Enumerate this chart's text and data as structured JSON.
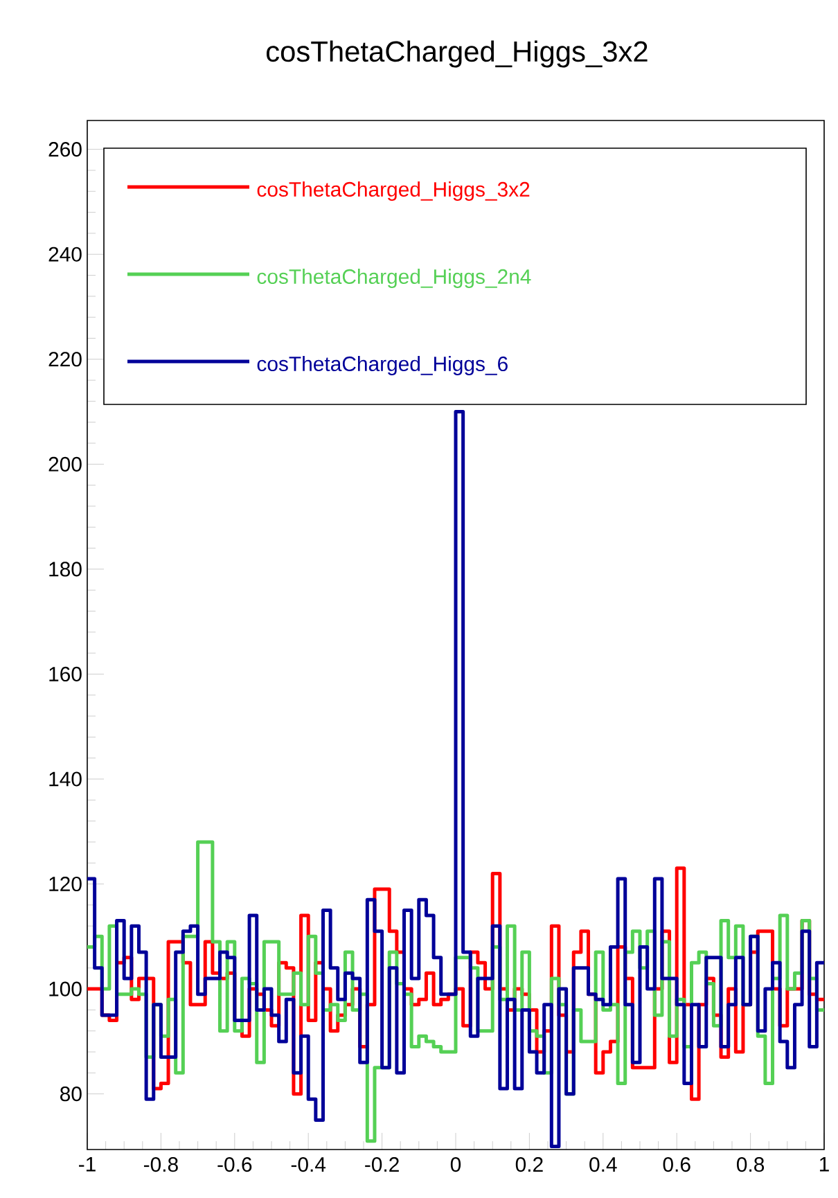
{
  "chart_data": {
    "type": "histogram",
    "title": "cosThetaCharged_Higgs_3x2",
    "bins": [
      -1,
      -0.98,
      -0.96,
      -0.94,
      -0.92,
      -0.9,
      -0.88,
      -0.86,
      -0.84,
      -0.82,
      -0.8,
      -0.78,
      -0.76,
      -0.74,
      -0.72,
      -0.7,
      -0.68,
      -0.66,
      -0.64,
      -0.62,
      -0.6,
      -0.58,
      -0.56,
      -0.54,
      -0.52,
      -0.5,
      -0.48,
      -0.46,
      -0.44,
      -0.42,
      -0.4,
      -0.38,
      -0.36,
      -0.34,
      -0.32,
      -0.3,
      -0.28,
      -0.26,
      -0.24,
      -0.22,
      -0.2,
      -0.18,
      -0.16,
      -0.14,
      -0.12,
      -0.1,
      -0.08,
      -0.06,
      -0.04,
      -0.02,
      0,
      0.02,
      0.04,
      0.06,
      0.08,
      0.1,
      0.12,
      0.14,
      0.16,
      0.18,
      0.2,
      0.22,
      0.24,
      0.26,
      0.28,
      0.3,
      0.32,
      0.34,
      0.36,
      0.38,
      0.4,
      0.42,
      0.44,
      0.46,
      0.48,
      0.5,
      0.52,
      0.54,
      0.56,
      0.58,
      0.6,
      0.62,
      0.64,
      0.66,
      0.68,
      0.7,
      0.72,
      0.74,
      0.76,
      0.78,
      0.8,
      0.82,
      0.84,
      0.86,
      0.88,
      0.9,
      0.92,
      0.94,
      0.96,
      0.98,
      1
    ],
    "series": [
      {
        "name": "cosThetaCharged_Higgs_3x2",
        "color": "#ff0000",
        "values": [
          100,
          100,
          95,
          94,
          105,
          106,
          98,
          102,
          102,
          81,
          82,
          109,
          109,
          105,
          97,
          97,
          109,
          103,
          102,
          103,
          94,
          91,
          100,
          99,
          96,
          93,
          105,
          104,
          80,
          114,
          94,
          105,
          100,
          92,
          95,
          97,
          100,
          89,
          97,
          119,
          119,
          111,
          107,
          100,
          97,
          98,
          103,
          97,
          98,
          99,
          100,
          93,
          107,
          105,
          100,
          122,
          100,
          96,
          100,
          99,
          96,
          88,
          92,
          112,
          95,
          88,
          107,
          111,
          99,
          84,
          88,
          90,
          108,
          102,
          85,
          85,
          85,
          100,
          111,
          86,
          123,
          97,
          79,
          97,
          102,
          95,
          87,
          100,
          88,
          97,
          107,
          111,
          111,
          100,
          93,
          100,
          100,
          113,
          99,
          98
        ]
      },
      {
        "name": "cosThetaCharged_Higgs_2n4",
        "color": "#55d055",
        "values": [
          108,
          110,
          100,
          112,
          99,
          99,
          100,
          99,
          87,
          97,
          91,
          98,
          84,
          110,
          110,
          128,
          128,
          109,
          92,
          109,
          92,
          102,
          101,
          86,
          109,
          109,
          99,
          99,
          103,
          97,
          110,
          103,
          96,
          97,
          94,
          107,
          96,
          99,
          71,
          85,
          85,
          107,
          101,
          99,
          89,
          91,
          90,
          89,
          88,
          88,
          106,
          106,
          104,
          92,
          92,
          108,
          98,
          112,
          96,
          107,
          92,
          91,
          84,
          102,
          97,
          80,
          96,
          90,
          90,
          107,
          96,
          97,
          82,
          107,
          111,
          104,
          111,
          95,
          109,
          91,
          98,
          89,
          105,
          107,
          101,
          93,
          113,
          106,
          112,
          97,
          110,
          91,
          82,
          102,
          114,
          100,
          103,
          113,
          102,
          96
        ]
      },
      {
        "name": "cosThetaCharged_Higgs_6",
        "color": "#000099",
        "values": [
          121,
          104,
          95,
          95,
          113,
          102,
          112,
          107,
          79,
          97,
          87,
          87,
          107,
          111,
          112,
          99,
          102,
          102,
          107,
          106,
          94,
          94,
          114,
          96,
          100,
          95,
          90,
          98,
          84,
          91,
          79,
          75,
          115,
          104,
          98,
          103,
          102,
          86,
          117,
          111,
          85,
          104,
          84,
          115,
          102,
          117,
          114,
          106,
          99,
          99,
          210,
          107,
          91,
          102,
          102,
          112,
          81,
          98,
          81,
          96,
          88,
          84,
          97,
          70,
          100,
          80,
          104,
          104,
          99,
          98,
          97,
          108,
          121,
          97,
          86,
          108,
          100,
          121,
          102,
          102,
          97,
          82,
          97,
          89,
          106,
          106,
          89,
          97,
          106,
          97,
          110,
          92,
          100,
          105,
          90,
          85,
          97,
          111,
          89,
          105
        ]
      }
    ],
    "xlim": [
      -1,
      1
    ],
    "ylim": [
      69.4,
      265.5
    ],
    "xticks": [
      -1,
      -0.8,
      -0.6,
      -0.4,
      -0.2,
      0,
      0.2,
      0.4,
      0.6,
      0.8,
      1
    ],
    "yticks": [
      80,
      100,
      120,
      140,
      160,
      180,
      200,
      220,
      240,
      260
    ],
    "legend": "top"
  }
}
